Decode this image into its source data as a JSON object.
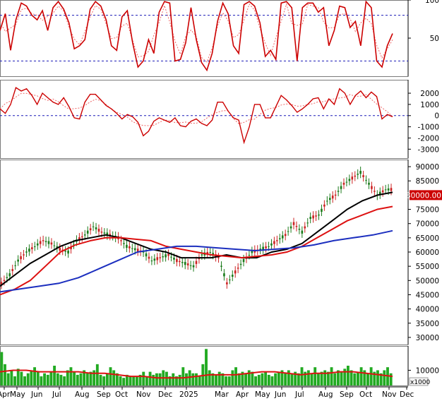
{
  "chart_data": [
    {
      "type": "line",
      "panel": "oscillator",
      "ylim": [
        0,
        100
      ],
      "y_ticks": [
        "100",
        "50"
      ],
      "reference_lines": [
        80,
        20
      ],
      "series": [
        {
          "values": [
            60,
            82,
            34,
            74,
            96,
            92,
            80,
            74,
            86,
            60,
            90,
            98,
            88,
            70,
            36,
            40,
            48,
            88,
            98,
            92,
            74,
            40,
            34,
            78,
            86,
            44,
            12,
            20,
            48,
            30,
            84,
            98,
            96,
            20,
            22,
            44,
            90,
            48,
            18,
            8,
            30,
            72,
            96,
            82,
            40,
            30,
            94,
            98,
            92,
            70,
            26,
            34,
            22,
            96,
            98,
            90,
            20,
            90,
            96,
            96,
            84,
            90,
            40,
            60,
            92,
            90,
            64,
            72,
            40,
            98,
            90,
            20,
            12,
            40,
            56
          ]
        }
      ]
    },
    {
      "type": "line",
      "panel": "momentum",
      "ylim": [
        -3800,
        3200
      ],
      "y_ticks": [
        "2000",
        "1000",
        "0",
        "-1000",
        "-2000",
        "-3000"
      ],
      "reference_lines": [
        0
      ],
      "series": [
        {
          "values": [
            600,
            200,
            1000,
            2500,
            2200,
            2400,
            1800,
            1000,
            2000,
            1600,
            1200,
            1000,
            1600,
            800,
            -200,
            -300,
            1200,
            1900,
            1900,
            1400,
            900,
            600,
            200,
            -300,
            100,
            -100,
            -600,
            -1800,
            -1400,
            -500,
            -200,
            -400,
            -600,
            -200,
            -900,
            -1000,
            -500,
            -300,
            -700,
            -900,
            -400,
            1200,
            1200,
            400,
            -200,
            -400,
            -2400,
            -1000,
            1000,
            1000,
            -200,
            -200,
            800,
            1800,
            1400,
            900,
            300,
            600,
            1000,
            1500,
            1600,
            600,
            1500,
            1000,
            2400,
            2000,
            1000,
            1800,
            2200,
            1600,
            2100,
            1700,
            -300,
            100,
            -100
          ]
        }
      ]
    },
    {
      "type": "line",
      "panel": "price",
      "ylim": [
        27500,
        92500
      ],
      "y_ticks": [
        "90000",
        "85000",
        "80000",
        "75000",
        "70000",
        "65000",
        "60000",
        "55000",
        "50000",
        "45000",
        "40000",
        "35000",
        "30000"
      ],
      "price_label": "80000.00",
      "series": [
        {
          "values": [
            49000,
            52000,
            57000,
            60000,
            62000,
            64000,
            63000,
            61000,
            60000,
            64000,
            66000,
            69000,
            67000,
            66000,
            65000,
            62000,
            61000,
            60000,
            57000,
            58000,
            59000,
            57000,
            56000,
            55000,
            59000,
            60000,
            58000,
            49000,
            53000,
            57000,
            60000,
            61000,
            62000,
            64000,
            66000,
            70000,
            67000,
            72000,
            73000,
            78000,
            80000,
            84000,
            86000,
            88000,
            84000,
            80000,
            82000
          ]
        },
        {
          "values": [
            48000,
            52000,
            56000,
            59000,
            62000,
            64000,
            65000,
            66000,
            65000,
            63000,
            61000,
            60000,
            58000,
            58000,
            58000,
            59000,
            58000,
            58000,
            60000,
            61000,
            63000,
            67000,
            71000,
            75000,
            78000,
            80000,
            81000
          ]
        },
        {
          "values": [
            45000,
            47000,
            50000,
            55000,
            60000,
            62500,
            64000,
            65000,
            65000,
            64500,
            64000,
            62000,
            61000,
            60000,
            59000,
            58500,
            58000,
            58500,
            59000,
            60000,
            62000,
            65000,
            68000,
            71000,
            73000,
            75000,
            76000
          ]
        },
        {
          "values": [
            46000,
            47000,
            48000,
            49000,
            51000,
            54000,
            57000,
            60000,
            61000,
            62000,
            62000,
            61500,
            61000,
            60500,
            61000,
            61500,
            62500,
            64000,
            65000,
            66000,
            67500
          ]
        }
      ]
    },
    {
      "type": "bar",
      "panel": "volume",
      "y_ticks": [
        "10000"
      ],
      "unit_label": "x1000",
      "x_tick_labels": [
        "Apr",
        "May",
        "Jun",
        "Jul",
        "Aug",
        "Sep",
        "Oct",
        "Nov",
        "Dec",
        "2025",
        "Mar",
        "Apr",
        "May",
        "Jun",
        "Jul",
        "Aug",
        "Sep",
        "Oct",
        "Nov",
        "Dec"
      ],
      "series": [
        {
          "values": [
            22,
            14,
            8,
            10,
            6,
            11,
            9,
            6,
            8,
            10,
            12,
            9,
            6,
            8,
            7,
            9,
            13,
            8,
            7,
            6,
            10,
            12,
            9,
            7,
            8,
            10,
            8,
            9,
            10,
            14,
            7,
            6,
            8,
            12,
            10,
            8,
            6,
            5,
            7,
            6,
            6,
            6,
            7,
            9,
            6,
            9,
            7,
            8,
            8,
            10,
            9,
            6,
            8,
            6,
            7,
            12,
            8,
            10,
            8,
            8,
            6,
            14,
            24,
            10,
            8,
            7,
            9,
            8,
            6,
            6,
            10,
            12,
            8,
            9,
            8,
            10,
            9,
            6,
            7,
            8,
            9,
            7,
            6,
            8,
            9,
            10,
            8,
            10,
            8,
            9,
            8,
            12,
            9,
            10,
            8,
            12,
            8,
            9,
            10,
            9,
            12,
            8,
            10,
            9,
            11,
            13,
            10,
            8,
            9,
            12,
            10,
            8,
            12,
            9,
            10,
            8,
            10,
            12,
            8
          ]
        },
        {
          "values": [
            9,
            10,
            10,
            9,
            9,
            9,
            9,
            8,
            8,
            7,
            6,
            6,
            5,
            5,
            5,
            6,
            7,
            7,
            7,
            8,
            9,
            9,
            8,
            7,
            8,
            8,
            9,
            9,
            8,
            7,
            6
          ]
        }
      ]
    }
  ],
  "theme": {
    "osc_color": "#cc0000",
    "price_color": "#1a7a1a",
    "line_black": "#000000",
    "line_red": "#dd1111",
    "line_blue": "#1c2fbf",
    "volume_color": "#22aa22",
    "dotted_color": "#1a1ab8",
    "price_label_bg": "#cc0000"
  }
}
